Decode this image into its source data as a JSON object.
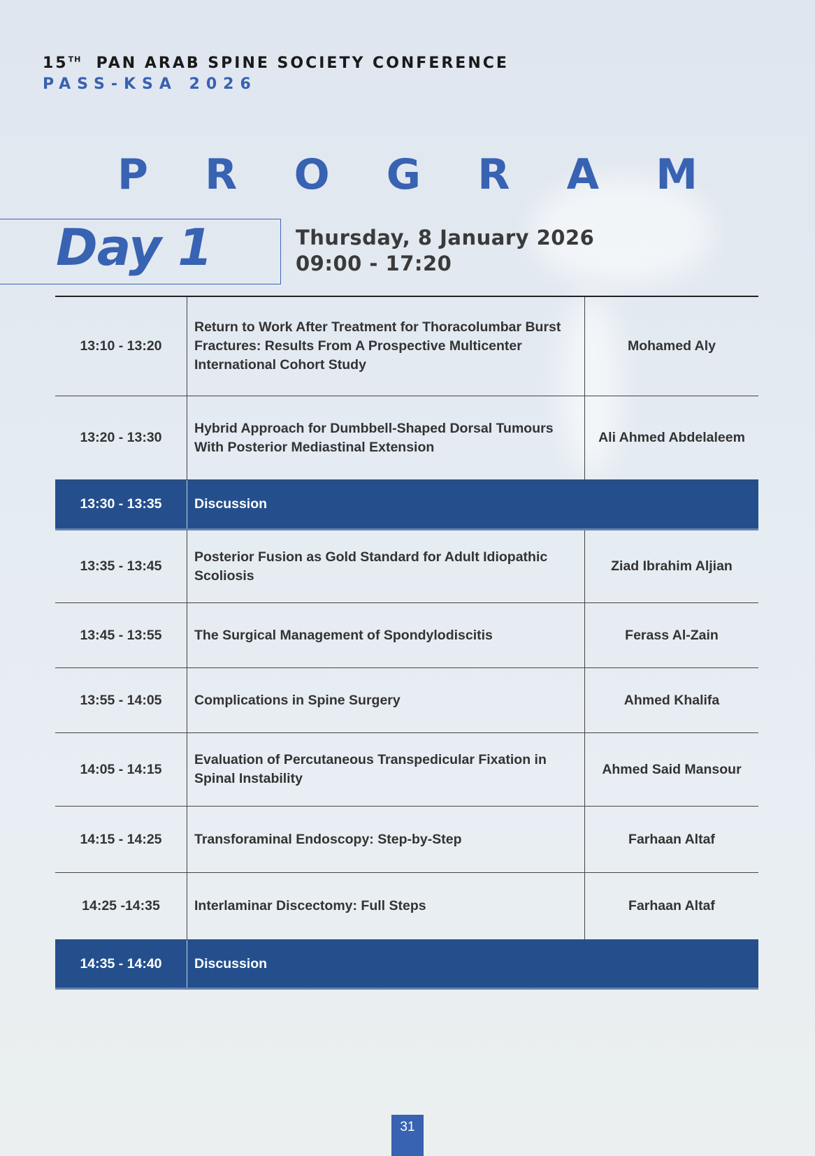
{
  "header": {
    "conference_number": "15",
    "conference_suffix": "TH",
    "conference_name": "PAN ARAB SPINE SOCIETY CONFERENCE",
    "subtitle": "PASS-KSA 2026"
  },
  "title_letters": [
    "P",
    "R",
    "O",
    "G",
    "R",
    "A",
    "M"
  ],
  "day": {
    "label": "Day 1",
    "date": "Thursday, 8 January 2026",
    "hours": "09:00 - 17:20"
  },
  "sessions": [
    {
      "time": "13:10 - 13:20",
      "title": "Return to Work After Treatment for Thoracolumbar Burst Fractures: Results From A Prospective Multicenter International Cohort Study",
      "speaker": "Mohamed Aly"
    },
    {
      "time": "13:20 - 13:30",
      "title": "Hybrid Approach for Dumbbell-Shaped Dorsal Tumours With Posterior Mediastinal Extension",
      "speaker": "Ali Ahmed Abdelaleem"
    },
    {
      "time": "13:30 - 13:35",
      "title": "Discussion",
      "discussion": true
    },
    {
      "time": "13:35 - 13:45",
      "title": "Posterior Fusion as Gold Standard for Adult Idiopathic Scoliosis",
      "speaker": "Ziad Ibrahim Aljian"
    },
    {
      "time": "13:45 - 13:55",
      "title": "The Surgical Management of Spondylodiscitis",
      "speaker": "Ferass Al-Zain"
    },
    {
      "time": "13:55 - 14:05",
      "title": "Complications in Spine Surgery",
      "speaker": "Ahmed Khalifa"
    },
    {
      "time": "14:05 - 14:15",
      "title": "Evaluation of Percutaneous Transpedicular Fixation in Spinal Instability",
      "speaker": "Ahmed Said Mansour"
    },
    {
      "time": "14:15 - 14:25",
      "title": "Transforaminal Endoscopy: Step-by-Step",
      "speaker": "Farhaan Altaf"
    },
    {
      "time": "14:25 -14:35",
      "title": "Interlaminar Discectomy: Full Steps",
      "speaker": "Farhaan Altaf"
    },
    {
      "time": "14:35 - 14:40",
      "title": "Discussion",
      "discussion": true
    }
  ],
  "page_number": "31",
  "colors": {
    "accent": "#3862b2",
    "discussion_bg": "#244f8c",
    "text": "#333333"
  }
}
